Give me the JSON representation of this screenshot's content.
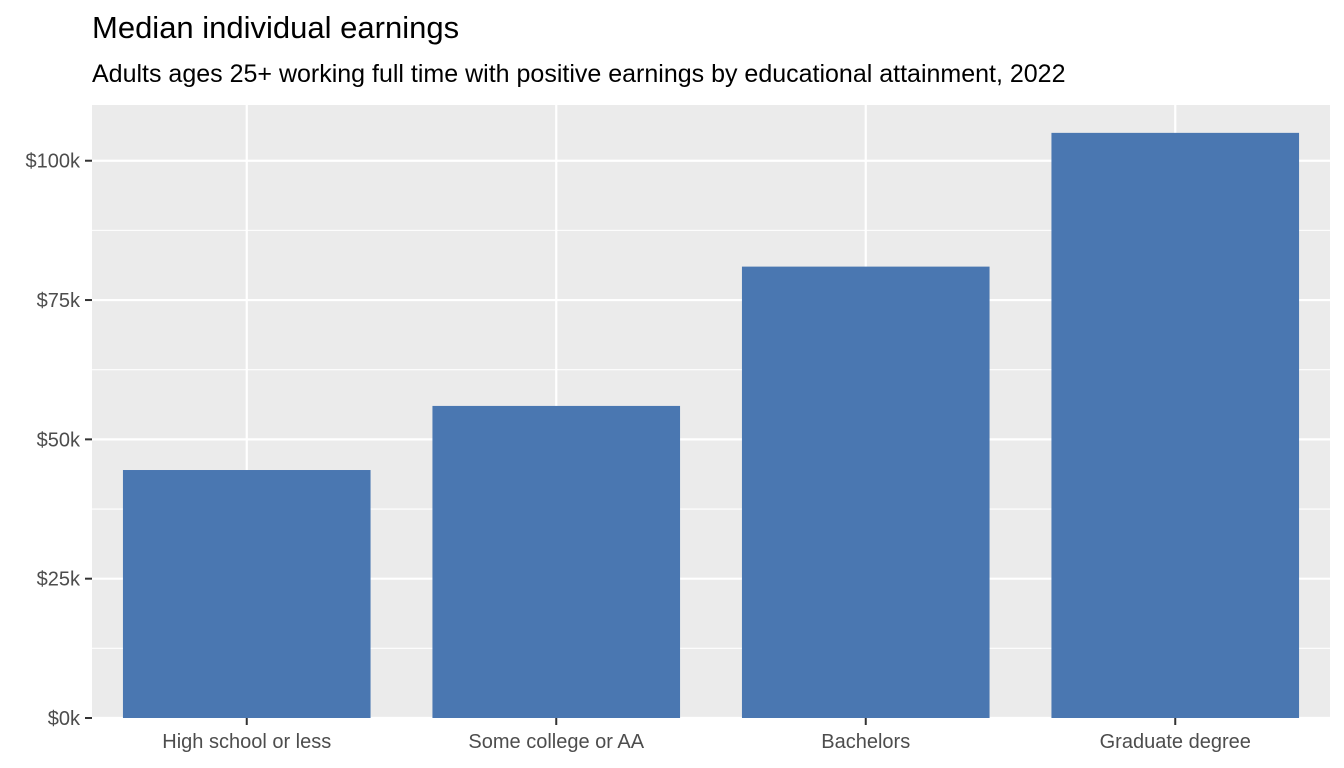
{
  "chart_data": {
    "type": "bar",
    "title": "Median individual earnings",
    "subtitle": "Adults ages 25+ working full time with positive earnings by educational attainment, 2022",
    "xlabel": "",
    "ylabel": "",
    "categories": [
      "High school or less",
      "Some college or AA",
      "Bachelors",
      "Graduate degree"
    ],
    "values": [
      44500,
      56000,
      81000,
      105000
    ],
    "ylim": [
      0,
      110000
    ],
    "yticks": [
      0,
      25000,
      50000,
      75000,
      100000
    ],
    "ytick_labels": [
      "$0k",
      "$25k",
      "$50k",
      "$75k",
      "$100k"
    ],
    "grid": true,
    "legend": "none",
    "colors": {
      "bar": "#4a77b1",
      "panel": "#ebebeb",
      "grid": "#ffffff",
      "tick_text": "#4d4d4d",
      "tick_mark": "#333333"
    }
  }
}
